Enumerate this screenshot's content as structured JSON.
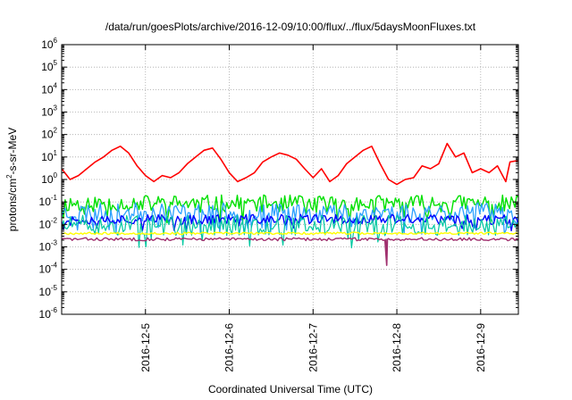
{
  "chart_data": {
    "type": "line",
    "title": "/data/run/goesPlots/archive/2016-12-09/10:00/flux/../flux/5daysMoonFluxes.txt",
    "xlabel": "Coordinated Universal Time (UTC)",
    "ylabel": {
      "pre": "protons/cm",
      "sup": "2",
      "post": "-s-sr-MeV"
    },
    "yscale": "log",
    "ylim_exp": [
      -6,
      6
    ],
    "y_ticks": [
      {
        "base": "10",
        "exp": "-6"
      },
      {
        "base": "10",
        "exp": "-5"
      },
      {
        "base": "10",
        "exp": "-4"
      },
      {
        "base": "10",
        "exp": "-3"
      },
      {
        "base": "10",
        "exp": "-2"
      },
      {
        "base": "10",
        "exp": "-1"
      },
      {
        "base": "10",
        "exp": "0"
      },
      {
        "base": "10",
        "exp": "1"
      },
      {
        "base": "10",
        "exp": "2"
      },
      {
        "base": "10",
        "exp": "3"
      },
      {
        "base": "10",
        "exp": "4"
      },
      {
        "base": "10",
        "exp": "5"
      },
      {
        "base": "10",
        "exp": "6"
      }
    ],
    "xlim_days": [
      4.0,
      9.45
    ],
    "x_ticks": [
      {
        "label": "2016-12-5",
        "day": 5
      },
      {
        "label": "2016-12-6",
        "day": 6
      },
      {
        "label": "2016-12-7",
        "day": 7
      },
      {
        "label": "2016-12-8",
        "day": 8
      },
      {
        "label": "2016-12-9",
        "day": 9
      }
    ],
    "grid": true,
    "legend": "none",
    "series": [
      {
        "color": "#ff0000",
        "width": 1.6,
        "points": [
          [
            4.0,
            3.0
          ],
          [
            4.1,
            1.0
          ],
          [
            4.2,
            1.5
          ],
          [
            4.3,
            3.0
          ],
          [
            4.4,
            6.0
          ],
          [
            4.5,
            10.0
          ],
          [
            4.6,
            20.0
          ],
          [
            4.7,
            30.0
          ],
          [
            4.8,
            15.0
          ],
          [
            4.9,
            4.0
          ],
          [
            5.0,
            1.5
          ],
          [
            5.1,
            0.8
          ],
          [
            5.2,
            1.5
          ],
          [
            5.3,
            1.2
          ],
          [
            5.4,
            2.0
          ],
          [
            5.5,
            5.0
          ],
          [
            5.6,
            10.0
          ],
          [
            5.7,
            20.0
          ],
          [
            5.8,
            25.0
          ],
          [
            5.9,
            8.0
          ],
          [
            6.0,
            2.0
          ],
          [
            6.1,
            0.8
          ],
          [
            6.2,
            1.2
          ],
          [
            6.3,
            2.0
          ],
          [
            6.4,
            6.0
          ],
          [
            6.5,
            10.0
          ],
          [
            6.6,
            15.0
          ],
          [
            6.7,
            12.0
          ],
          [
            6.8,
            8.0
          ],
          [
            6.9,
            3.0
          ],
          [
            7.0,
            1.2
          ],
          [
            7.1,
            3.0
          ],
          [
            7.2,
            0.8
          ],
          [
            7.3,
            1.5
          ],
          [
            7.4,
            5.0
          ],
          [
            7.5,
            10.0
          ],
          [
            7.6,
            20.0
          ],
          [
            7.7,
            30.0
          ],
          [
            7.8,
            5.0
          ],
          [
            7.9,
            1.0
          ],
          [
            8.0,
            0.6
          ],
          [
            8.1,
            1.0
          ],
          [
            8.2,
            1.2
          ],
          [
            8.3,
            4.0
          ],
          [
            8.4,
            3.0
          ],
          [
            8.5,
            5.0
          ],
          [
            8.6,
            40.0
          ],
          [
            8.7,
            10.0
          ],
          [
            8.8,
            15.0
          ],
          [
            8.9,
            2.0
          ],
          [
            9.0,
            3.0
          ],
          [
            9.1,
            2.0
          ],
          [
            9.2,
            4.0
          ],
          [
            9.3,
            0.8
          ],
          [
            9.35,
            6.0
          ],
          [
            9.45,
            7.0
          ]
        ]
      },
      {
        "color": "#00e000",
        "width": 1.4,
        "base": 0.085,
        "amp": 0.38,
        "seed": 11
      },
      {
        "color": "#2aa0ff",
        "width": 1.3,
        "base": 0.035,
        "amp": 0.42,
        "seed": 23
      },
      {
        "color": "#0000ff",
        "width": 1.4,
        "base": 0.017,
        "amp": 0.22,
        "seed": 37
      },
      {
        "color": "#00c8a0",
        "width": 1.2,
        "base": 0.009,
        "amp": 0.45,
        "seed": 51
      },
      {
        "color": "#ffff00",
        "width": 1.4,
        "base": 0.004,
        "amp": 0.05,
        "seed": 67
      },
      {
        "color": "#a0306e",
        "width": 1.4,
        "base": 0.0022,
        "amp": 0.07,
        "seed": 83,
        "dip": [
          7.88,
          0.00015
        ]
      }
    ]
  }
}
